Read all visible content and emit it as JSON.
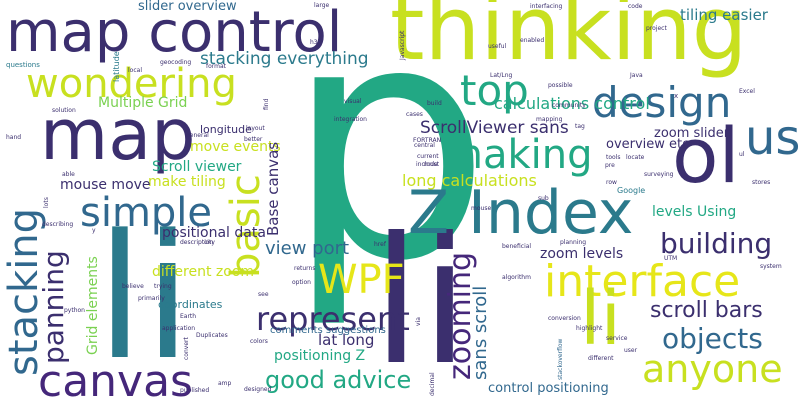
{
  "colors": {
    "background": "#ffffff",
    "navy": "#3b2f6e",
    "purple": "#45277a",
    "teal": "#2b7a8c",
    "green": "#22a884",
    "lime": "#c8e020",
    "yellow": "#e6e619",
    "blue": "#31688e",
    "lightgreen": "#7ad151"
  },
  "words": [
    {
      "text": "p"
    },
    {
      "text": "li"
    },
    {
      "text": "li"
    },
    {
      "text": "thinking"
    },
    {
      "text": "map control"
    },
    {
      "text": "map"
    },
    {
      "text": "ol"
    },
    {
      "text": "Z Index"
    },
    {
      "text": "interface"
    },
    {
      "text": "li"
    },
    {
      "text": "canvas"
    },
    {
      "text": "stacking"
    },
    {
      "text": "basic"
    },
    {
      "text": "using"
    },
    {
      "text": "design"
    },
    {
      "text": "top"
    },
    {
      "text": "wondering"
    },
    {
      "text": "making"
    },
    {
      "text": "simple"
    },
    {
      "text": "WPF"
    },
    {
      "text": "building"
    },
    {
      "text": "represent"
    },
    {
      "text": "anyone"
    },
    {
      "text": "objects"
    },
    {
      "text": "zooming"
    },
    {
      "text": "panning"
    },
    {
      "text": "good advice"
    },
    {
      "text": "stacking everything"
    },
    {
      "text": "ScrollViewer sans"
    },
    {
      "text": "calculations control"
    },
    {
      "text": "scroll bars"
    },
    {
      "text": "view port"
    },
    {
      "text": "sans scroll"
    },
    {
      "text": "long calculations"
    },
    {
      "text": "Base canvas"
    },
    {
      "text": "slider overview"
    },
    {
      "text": "tiling easier"
    },
    {
      "text": "Multiple Grid"
    },
    {
      "text": "zoom slider"
    },
    {
      "text": "overview etc"
    },
    {
      "text": "move events"
    },
    {
      "text": "Scroll viewer"
    },
    {
      "text": "make tiling"
    },
    {
      "text": "mouse move"
    },
    {
      "text": "levels Using"
    },
    {
      "text": "zoom levels"
    },
    {
      "text": "positional data"
    },
    {
      "text": "different zoom"
    },
    {
      "text": "lat long"
    },
    {
      "text": "positioning Z"
    },
    {
      "text": "comments suggestions"
    },
    {
      "text": "control positioning"
    },
    {
      "text": "Grid elements"
    },
    {
      "text": "coordinates"
    },
    {
      "text": "longitude"
    },
    {
      "text": "questions"
    },
    {
      "text": "latitude"
    },
    {
      "text": "Google"
    },
    {
      "text": "h3"
    },
    {
      "text": "code"
    },
    {
      "text": "useful"
    },
    {
      "text": "large"
    },
    {
      "text": "interfacing"
    },
    {
      "text": "solution"
    },
    {
      "text": "integration"
    },
    {
      "text": "href"
    },
    {
      "text": "mouse"
    },
    {
      "text": "Excel"
    },
    {
      "text": "tag"
    },
    {
      "text": "pre"
    },
    {
      "text": "stackoverflow"
    },
    {
      "text": "service"
    },
    {
      "text": "highlight"
    },
    {
      "text": "UTM"
    },
    {
      "text": "surveying"
    },
    {
      "text": "different"
    },
    {
      "text": "Earth"
    },
    {
      "text": "python"
    },
    {
      "text": "believe"
    },
    {
      "text": "primarily"
    },
    {
      "text": "application"
    },
    {
      "text": "Duplicates"
    },
    {
      "text": "colors"
    },
    {
      "text": "designed"
    },
    {
      "text": "description"
    },
    {
      "text": "returns"
    },
    {
      "text": "option"
    },
    {
      "text": "algorithm"
    },
    {
      "text": "beneficial"
    },
    {
      "text": "planning"
    },
    {
      "text": "community"
    },
    {
      "text": "build"
    },
    {
      "text": "conversion"
    },
    {
      "text": "tools"
    },
    {
      "text": "locate"
    },
    {
      "text": "system"
    },
    {
      "text": "stores"
    },
    {
      "text": "ul"
    },
    {
      "text": "city"
    },
    {
      "text": "trying"
    },
    {
      "text": "able"
    },
    {
      "text": "general"
    },
    {
      "text": "published"
    },
    {
      "text": "FORTRAN"
    },
    {
      "text": "convert"
    },
    {
      "text": "via"
    },
    {
      "text": "decimal"
    },
    {
      "text": "possible"
    },
    {
      "text": "enabled"
    },
    {
      "text": "x"
    },
    {
      "text": "project"
    },
    {
      "text": "format"
    },
    {
      "text": "mapping"
    },
    {
      "text": "cases"
    },
    {
      "text": "central"
    },
    {
      "text": "current"
    },
    {
      "text": "visual"
    },
    {
      "text": "find"
    },
    {
      "text": "include"
    },
    {
      "text": "layout"
    },
    {
      "text": "describing"
    },
    {
      "text": "lots"
    },
    {
      "text": "Java"
    },
    {
      "text": "user"
    },
    {
      "text": "amp"
    },
    {
      "text": "see"
    },
    {
      "text": "sub"
    },
    {
      "text": "row"
    },
    {
      "text": "Lat/Lng"
    },
    {
      "text": "local"
    },
    {
      "text": "geocoding"
    },
    {
      "text": "better"
    },
    {
      "text": "must"
    },
    {
      "text": "hand"
    },
    {
      "text": "Javascript"
    },
    {
      "text": "y"
    }
  ]
}
